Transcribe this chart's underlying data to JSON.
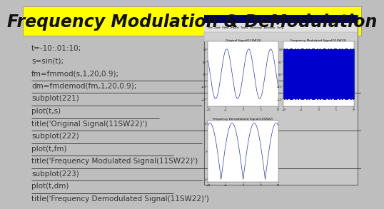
{
  "title": "Frequency Modulation & DeModulation",
  "title_bg": "#FFFF00",
  "title_color": "#111111",
  "main_bg": "#BEBEBE",
  "code_lines": [
    "t=-10:.01:10;",
    "s=sin(t);",
    "fm=fmmod(s,1,20,0.9);",
    "dm=fmdemod(fm,1,20,0.9);",
    "subplot(221)",
    "plot(t,s)",
    "title('Original Signal(11SW22)')",
    "subplot(222)",
    "plot(t,fm)",
    "title('Frequency Modulated Signal(11SW22)')",
    "subplot(223)",
    "plot(t,dm)",
    "title('Frequency Demodulated Signal(11SW22)')"
  ],
  "underline_indices": [
    2,
    3,
    4,
    5,
    6,
    7,
    8,
    9,
    10,
    11,
    12
  ],
  "code_color": "#333333",
  "matlab_window_bg": "#C8C8C8",
  "subplot1_title": "Original Signal(11SW22)",
  "subplot2_title": "Frequency Modulated Signal(11SW22)",
  "subplot3_title": "Frequency Demodulated Signal(11SW22)",
  "line_color1": "#3333AA",
  "line_color2": "#0000CC",
  "line_color3": "#3333AA",
  "window_header_color": "#000080",
  "title_fontsize": 17,
  "code_fontsize": 7.5
}
